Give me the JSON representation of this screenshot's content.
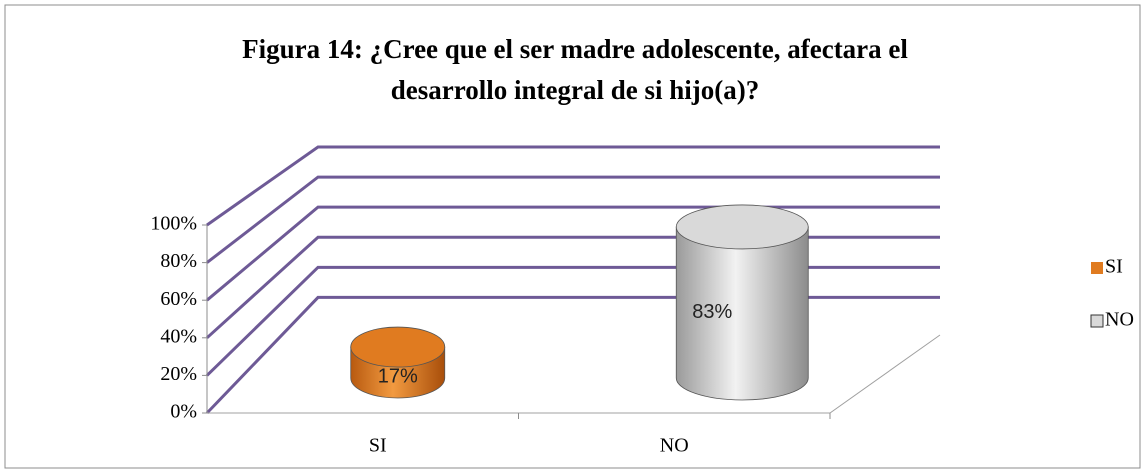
{
  "chart_data": {
    "type": "cylinder",
    "title": "Figura 14: ¿Cree que el ser madre adolescente, afectara el",
    "subtitle": "desarrollo integral de si hijo(a)?",
    "categories": [
      "SI",
      "NO"
    ],
    "values": [
      17,
      83
    ],
    "value_labels": [
      "17%",
      "83%"
    ],
    "colors": [
      "#e07b20",
      "#d9d9d9"
    ],
    "ylim": [
      0,
      100
    ],
    "yticks": [
      {
        "value": 0,
        "label": "0%"
      },
      {
        "value": 20,
        "label": "20%"
      },
      {
        "value": 40,
        "label": "40%"
      },
      {
        "value": 60,
        "label": "60%"
      },
      {
        "value": 80,
        "label": "80%"
      },
      {
        "value": 100,
        "label": "100%"
      }
    ],
    "grid": true,
    "grid_color": "#6e5a96",
    "legend": "right"
  }
}
